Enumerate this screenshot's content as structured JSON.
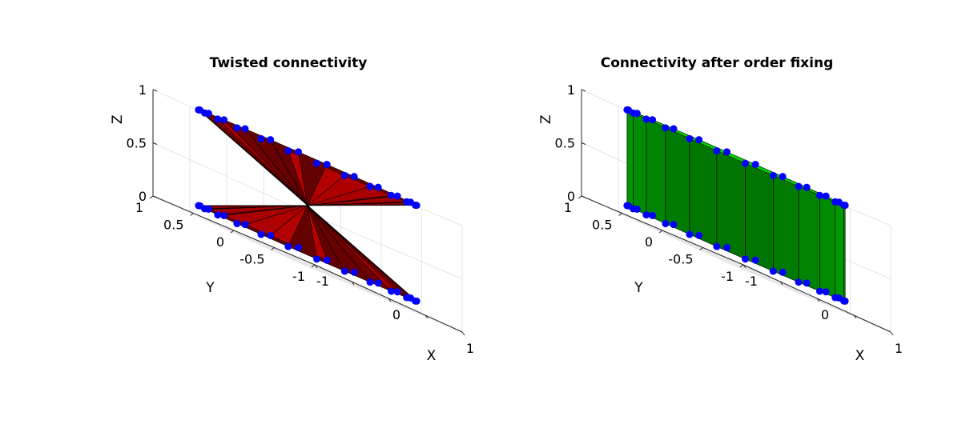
{
  "figure": {
    "background": "#ffffff"
  },
  "chart_data": [
    {
      "type": "surface",
      "title": "Twisted connectivity",
      "xlabel": "X",
      "ylabel": "Y",
      "zlabel": "Z",
      "xlim": [
        -1,
        1
      ],
      "ylim": [
        -1,
        1
      ],
      "zlim": [
        0,
        1
      ],
      "xticks": [
        "-1",
        "0",
        "1"
      ],
      "yticks": [
        "-1",
        "-0.5",
        "0",
        "0.5",
        "1"
      ],
      "zticks": [
        "0",
        "0.5",
        "1"
      ],
      "ring_points": 24,
      "radius": 1,
      "bottom_z": 0.1,
      "top_z": 1.0,
      "twist_offset": 12,
      "surface_color": "#b40000",
      "marker_color": "#0000ff",
      "grid": true
    },
    {
      "type": "surface",
      "title": "Connectivity after order fixing",
      "xlabel": "X",
      "ylabel": "Y",
      "zlabel": "Z",
      "xlim": [
        -1,
        1
      ],
      "ylim": [
        -1,
        1
      ],
      "zlim": [
        0,
        1
      ],
      "xticks": [
        "-1",
        "0",
        "1"
      ],
      "yticks": [
        "-1",
        "-0.5",
        "0",
        "0.5",
        "1"
      ],
      "zticks": [
        "0",
        "0.5",
        "1"
      ],
      "ring_points": 24,
      "radius": 1,
      "bottom_z": 0.1,
      "top_z": 1.0,
      "twist_offset": 0,
      "surface_color": "#00d400",
      "marker_color": "#0000ff",
      "grid": true
    }
  ]
}
